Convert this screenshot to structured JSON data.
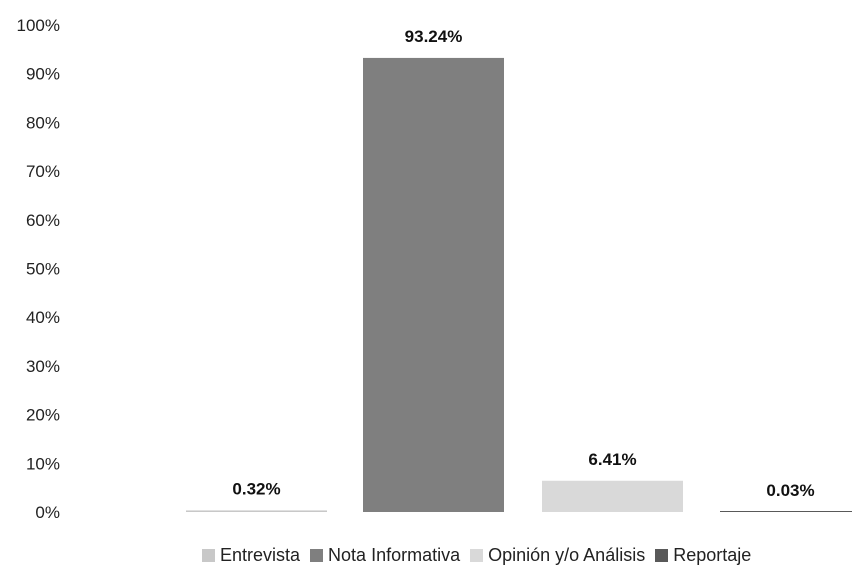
{
  "chart_data": {
    "type": "bar",
    "categories": [
      "Entrevista",
      "Nota Informativa",
      "Opinión y/o Análisis",
      "Reportaje"
    ],
    "values": [
      0.32,
      93.24,
      6.41,
      0.03
    ],
    "data_labels": [
      "0.32%",
      "93.24%",
      "6.41%",
      "0.03%"
    ],
    "colors": [
      "#c8c8c8",
      "#7f7f7f",
      "#d9d9d9",
      "#595959"
    ],
    "yticks": [
      "0%",
      "10%",
      "20%",
      "30%",
      "40%",
      "50%",
      "60%",
      "70%",
      "80%",
      "90%",
      "100%"
    ],
    "ylim": [
      0,
      100
    ],
    "grid": false,
    "legend_position": "bottom",
    "title": "",
    "xlabel": "",
    "ylabel": ""
  }
}
